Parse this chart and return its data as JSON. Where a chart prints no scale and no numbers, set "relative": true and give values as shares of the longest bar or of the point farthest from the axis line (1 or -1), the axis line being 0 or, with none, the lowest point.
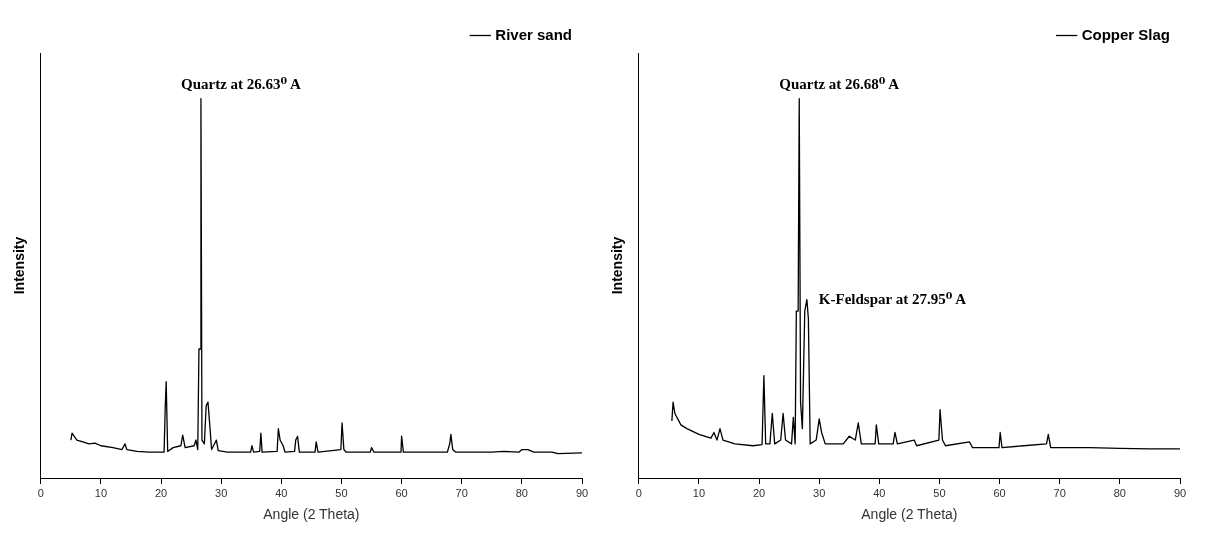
{
  "chart_data": [
    {
      "type": "line",
      "xlabel": "Angle (2 Theta)",
      "ylabel": "Intensity",
      "relative": true,
      "legend": "top right",
      "marker": "none",
      "grid": false,
      "xlim": [
        0,
        90
      ],
      "xticks": [
        0,
        10,
        20,
        30,
        40,
        50,
        60,
        70,
        80,
        90
      ],
      "annotations": [
        {
          "text": "Quartz at 26.63⁰ A",
          "x": 26.63,
          "y": 1.0
        }
      ],
      "series": [
        {
          "name": "River sand",
          "color": "#000000",
          "x": [
            5,
            5.2,
            6,
            7,
            8,
            9,
            10,
            12,
            13.5,
            14,
            14.3,
            16,
            18,
            20.5,
            20.7,
            20.85,
            21.1,
            22,
            23.3,
            23.6,
            24,
            25.5,
            25.8,
            26.1,
            26.3,
            26.5,
            26.63,
            26.8,
            27.2,
            27.5,
            27.8,
            28.1,
            28.4,
            29.2,
            29.5,
            31,
            34.9,
            35.1,
            35.4,
            36.4,
            36.6,
            36.8,
            39.3,
            39.5,
            39.8,
            40.3,
            40.6,
            42.2,
            42.4,
            42.7,
            43,
            45.6,
            45.8,
            46.1,
            49.9,
            50.1,
            50.4,
            50.8,
            54.8,
            55,
            55.4,
            59.9,
            60,
            60.3,
            67.6,
            68,
            68.2,
            68.5,
            69,
            75,
            77,
            79.5,
            80,
            81,
            82,
            85,
            86,
            90
          ],
          "values": [
            0.1,
            0.118,
            0.1,
            0.095,
            0.09,
            0.092,
            0.085,
            0.08,
            0.075,
            0.09,
            0.075,
            0.07,
            0.068,
            0.068,
            0.19,
            0.254,
            0.07,
            0.08,
            0.085,
            0.113,
            0.08,
            0.085,
            0.1,
            0.075,
            0.34,
            0.34,
            1.0,
            0.1,
            0.09,
            0.19,
            0.2,
            0.14,
            0.075,
            0.1,
            0.072,
            0.068,
            0.068,
            0.085,
            0.068,
            0.07,
            0.118,
            0.068,
            0.07,
            0.13,
            0.1,
            0.085,
            0.068,
            0.07,
            0.1,
            0.11,
            0.068,
            0.068,
            0.095,
            0.068,
            0.075,
            0.145,
            0.075,
            0.068,
            0.068,
            0.08,
            0.068,
            0.068,
            0.11,
            0.068,
            0.068,
            0.09,
            0.115,
            0.075,
            0.068,
            0.068,
            0.07,
            0.068,
            0.075,
            0.075,
            0.068,
            0.068,
            0.064,
            0.066
          ]
        }
      ]
    },
    {
      "type": "line",
      "xlabel": "Angle (2 Theta)",
      "ylabel": "Intensity",
      "relative": true,
      "legend": "top right",
      "marker": "none",
      "grid": false,
      "xlim": [
        0,
        90
      ],
      "xticks": [
        0,
        10,
        20,
        30,
        40,
        50,
        60,
        70,
        80,
        90
      ],
      "annotations": [
        {
          "text": "Quartz at 26.68⁰ A",
          "x": 26.68,
          "y": 1.0
        },
        {
          "text": "K-Feldspar at 27.95⁰ A",
          "x": 27.95,
          "y": 0.47
        }
      ],
      "series": [
        {
          "name": "Copper Slag",
          "color": "#000000",
          "x": [
            5.5,
            5.7,
            6,
            7,
            8,
            10,
            12,
            12.5,
            13,
            13.5,
            14,
            16,
            19,
            20.5,
            20.8,
            21.1,
            21.8,
            22.2,
            22.6,
            23.6,
            24,
            24.4,
            25.4,
            25.7,
            26,
            26.2,
            26.5,
            26.68,
            26.9,
            27.2,
            27.6,
            27.95,
            28.2,
            28.5,
            29.5,
            30,
            30.4,
            31,
            34,
            35,
            36,
            36.5,
            37,
            39.3,
            39.5,
            39.9,
            42.3,
            42.6,
            43,
            45.8,
            46.2,
            49.9,
            50.1,
            50.5,
            51,
            55,
            55.5,
            59.9,
            60.1,
            60.4,
            64,
            67.8,
            68.1,
            68.5,
            75,
            80,
            85,
            90
          ],
          "values": [
            0.15,
            0.2,
            0.17,
            0.14,
            0.13,
            0.115,
            0.105,
            0.12,
            0.1,
            0.13,
            0.1,
            0.09,
            0.085,
            0.088,
            0.27,
            0.09,
            0.09,
            0.17,
            0.09,
            0.1,
            0.17,
            0.1,
            0.09,
            0.16,
            0.09,
            0.44,
            0.44,
            1.0,
            0.2,
            0.13,
            0.44,
            0.47,
            0.42,
            0.09,
            0.1,
            0.156,
            0.12,
            0.09,
            0.09,
            0.11,
            0.1,
            0.145,
            0.09,
            0.09,
            0.14,
            0.09,
            0.09,
            0.12,
            0.09,
            0.1,
            0.085,
            0.1,
            0.18,
            0.1,
            0.085,
            0.095,
            0.08,
            0.08,
            0.12,
            0.08,
            0.085,
            0.09,
            0.115,
            0.08,
            0.08,
            0.078,
            0.077,
            0.077
          ]
        }
      ]
    }
  ]
}
